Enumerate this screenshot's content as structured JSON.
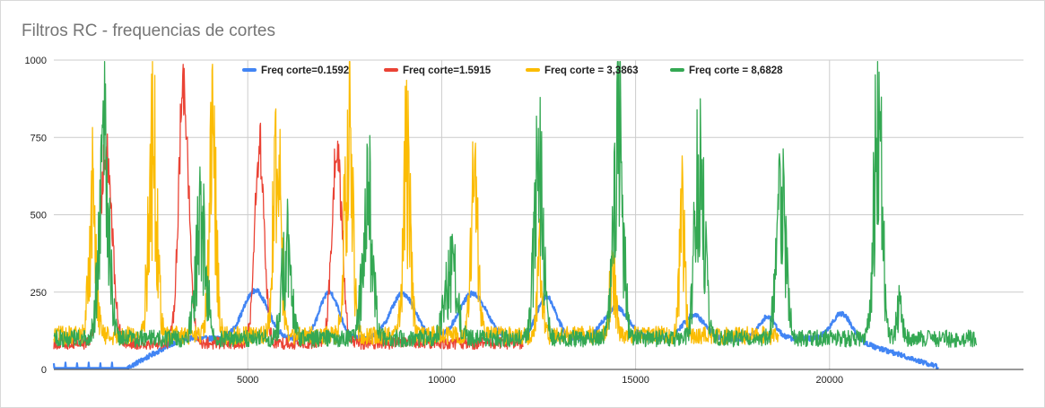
{
  "chart_data": {
    "type": "line",
    "title": "Filtros RC - frequencias de cortes",
    "xlabel": "",
    "ylabel": "",
    "xlim": [
      0,
      25000
    ],
    "ylim": [
      0,
      1000
    ],
    "x_ticks": [
      5000,
      10000,
      15000,
      20000
    ],
    "y_ticks": [
      0,
      250,
      500,
      750,
      1000
    ],
    "grid": true,
    "legend_position": "top-center",
    "series": [
      {
        "name": "Freq corte=0.1592",
        "color": "#4285F4",
        "x_range": [
          0,
          22800
        ],
        "baseline": 100,
        "noise": 8,
        "segments": [
          {
            "x0": 0,
            "x1": 1900,
            "y": 5
          }
        ],
        "rise": [
          1900,
          3300,
          5,
          100
        ],
        "peaks": [
          [
            5200,
            255,
            450
          ],
          [
            7100,
            250,
            350
          ],
          [
            9000,
            245,
            450
          ],
          [
            10800,
            245,
            500
          ],
          [
            12700,
            235,
            350
          ],
          [
            14500,
            200,
            450
          ],
          [
            16500,
            175,
            400
          ],
          [
            18400,
            170,
            300
          ],
          [
            20300,
            180,
            350
          ]
        ],
        "decay": [
          20500,
          22800,
          100,
          8
        ],
        "spikes": [
          [
            0,
            20
          ],
          [
            300,
            22
          ],
          [
            600,
            20
          ],
          [
            900,
            22
          ],
          [
            1200,
            20
          ],
          [
            1500,
            22
          ]
        ]
      },
      {
        "name": "Freq corte=1.5915",
        "color": "#EA4335",
        "x_range": [
          0,
          12100
        ],
        "baseline": 85,
        "noise": 20,
        "segments": [],
        "peaks": [
          [
            1350,
            720,
            210
          ],
          [
            3350,
            930,
            180
          ],
          [
            5300,
            720,
            170
          ],
          [
            7300,
            710,
            180
          ]
        ],
        "spikes": []
      },
      {
        "name": "Freq corte = 3,3863",
        "color": "#FBBC04",
        "x_range": [
          0,
          18700
        ],
        "baseline": 110,
        "noise": 30,
        "segments": [],
        "peaks": [
          [
            1000,
            540,
            130
          ],
          [
            2550,
            720,
            150
          ],
          [
            4100,
            680,
            130
          ],
          [
            5750,
            690,
            140
          ],
          [
            7600,
            800,
            140
          ],
          [
            9100,
            660,
            130
          ],
          [
            10850,
            560,
            130
          ],
          [
            12550,
            350,
            100
          ],
          [
            14400,
            330,
            110
          ],
          [
            16200,
            470,
            110
          ]
        ],
        "spikes": []
      },
      {
        "name": "Freq corte = 8,6828",
        "color": "#34A853",
        "x_range": [
          0,
          23800
        ],
        "baseline": 100,
        "noise": 28,
        "segments": [],
        "peaks": [
          [
            1300,
            680,
            180
          ],
          [
            3800,
            450,
            200
          ],
          [
            6000,
            380,
            170
          ],
          [
            8100,
            560,
            180
          ],
          [
            10250,
            330,
            220
          ],
          [
            12500,
            660,
            160
          ],
          [
            14550,
            750,
            170
          ],
          [
            16650,
            700,
            170
          ],
          [
            18750,
            520,
            180
          ],
          [
            21250,
            800,
            150
          ],
          [
            21800,
            200,
            100
          ]
        ],
        "spikes": []
      }
    ]
  }
}
